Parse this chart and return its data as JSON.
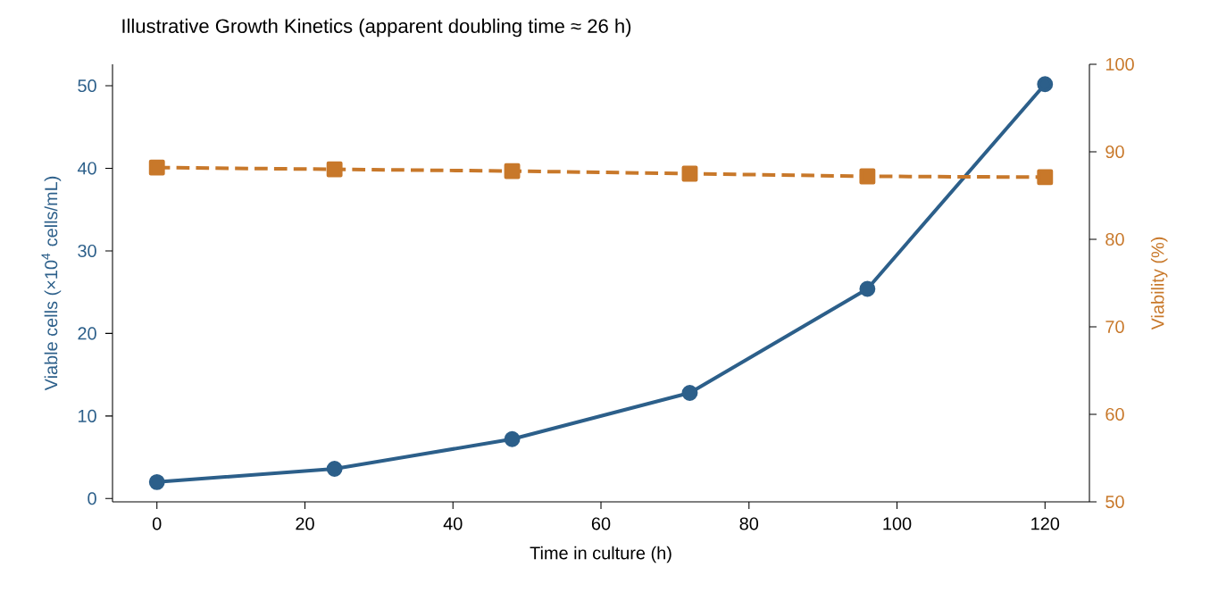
{
  "chart_data": {
    "type": "line",
    "title": "Illustrative Growth Kinetics (apparent doubling time ≈ 26 h)",
    "xlabel": "Time in culture (h)",
    "ylabel": "Viable cells (×10$^{4}$ cells/mL)",
    "y2label": "Viability (%)",
    "x": [
      0,
      24,
      48,
      72,
      96,
      120
    ],
    "series": [
      {
        "color": "#2c5f8a",
        "values": [
          2.0,
          3.6,
          7.2,
          12.8,
          25.4,
          50.2
        ],
        "marker": "circle",
        "line_style": "solid"
      },
      {
        "color": "#c8782a",
        "values": [
          88.2,
          88.0,
          87.8,
          87.5,
          87.2,
          87.1
        ],
        "marker": "square",
        "line_style": "dashed",
        "axis": "y2"
      }
    ],
    "xlim": [
      -6,
      126
    ],
    "xticks": [
      0,
      20,
      40,
      60,
      80,
      100,
      120
    ],
    "ylim": [
      -0.4,
      52.6
    ],
    "yticks": [
      0,
      10,
      20,
      30,
      40,
      50
    ],
    "y2lim": [
      50,
      100
    ],
    "y2ticks": [
      50,
      60,
      70,
      80,
      90,
      100
    ],
    "grid": false
  }
}
